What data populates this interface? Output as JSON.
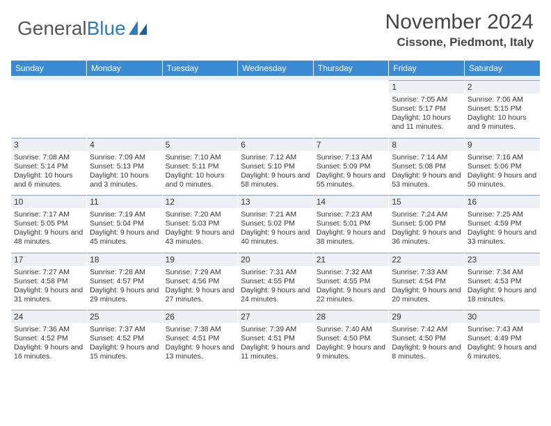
{
  "header": {
    "logo_text_1": "General",
    "logo_text_2": "Blue",
    "month_title": "November 2024",
    "location": "Cissone, Piedmont, Italy"
  },
  "colors": {
    "header_bar": "#3b8bd4",
    "daynum_bg": "#eceff4",
    "daynum_border": "#8aa0b8",
    "logo_blue": "#2b7cc5"
  },
  "day_names": [
    "Sunday",
    "Monday",
    "Tuesday",
    "Wednesday",
    "Thursday",
    "Friday",
    "Saturday"
  ],
  "weeks": [
    [
      null,
      null,
      null,
      null,
      null,
      {
        "num": "1",
        "sunrise": "Sunrise: 7:05 AM",
        "sunset": "Sunset: 5:17 PM",
        "daylight": "Daylight: 10 hours and 11 minutes."
      },
      {
        "num": "2",
        "sunrise": "Sunrise: 7:06 AM",
        "sunset": "Sunset: 5:15 PM",
        "daylight": "Daylight: 10 hours and 9 minutes."
      }
    ],
    [
      {
        "num": "3",
        "sunrise": "Sunrise: 7:08 AM",
        "sunset": "Sunset: 5:14 PM",
        "daylight": "Daylight: 10 hours and 6 minutes."
      },
      {
        "num": "4",
        "sunrise": "Sunrise: 7:09 AM",
        "sunset": "Sunset: 5:13 PM",
        "daylight": "Daylight: 10 hours and 3 minutes."
      },
      {
        "num": "5",
        "sunrise": "Sunrise: 7:10 AM",
        "sunset": "Sunset: 5:11 PM",
        "daylight": "Daylight: 10 hours and 0 minutes."
      },
      {
        "num": "6",
        "sunrise": "Sunrise: 7:12 AM",
        "sunset": "Sunset: 5:10 PM",
        "daylight": "Daylight: 9 hours and 58 minutes."
      },
      {
        "num": "7",
        "sunrise": "Sunrise: 7:13 AM",
        "sunset": "Sunset: 5:09 PM",
        "daylight": "Daylight: 9 hours and 55 minutes."
      },
      {
        "num": "8",
        "sunrise": "Sunrise: 7:14 AM",
        "sunset": "Sunset: 5:08 PM",
        "daylight": "Daylight: 9 hours and 53 minutes."
      },
      {
        "num": "9",
        "sunrise": "Sunrise: 7:16 AM",
        "sunset": "Sunset: 5:06 PM",
        "daylight": "Daylight: 9 hours and 50 minutes."
      }
    ],
    [
      {
        "num": "10",
        "sunrise": "Sunrise: 7:17 AM",
        "sunset": "Sunset: 5:05 PM",
        "daylight": "Daylight: 9 hours and 48 minutes."
      },
      {
        "num": "11",
        "sunrise": "Sunrise: 7:19 AM",
        "sunset": "Sunset: 5:04 PM",
        "daylight": "Daylight: 9 hours and 45 minutes."
      },
      {
        "num": "12",
        "sunrise": "Sunrise: 7:20 AM",
        "sunset": "Sunset: 5:03 PM",
        "daylight": "Daylight: 9 hours and 43 minutes."
      },
      {
        "num": "13",
        "sunrise": "Sunrise: 7:21 AM",
        "sunset": "Sunset: 5:02 PM",
        "daylight": "Daylight: 9 hours and 40 minutes."
      },
      {
        "num": "14",
        "sunrise": "Sunrise: 7:23 AM",
        "sunset": "Sunset: 5:01 PM",
        "daylight": "Daylight: 9 hours and 38 minutes."
      },
      {
        "num": "15",
        "sunrise": "Sunrise: 7:24 AM",
        "sunset": "Sunset: 5:00 PM",
        "daylight": "Daylight: 9 hours and 36 minutes."
      },
      {
        "num": "16",
        "sunrise": "Sunrise: 7:25 AM",
        "sunset": "Sunset: 4:59 PM",
        "daylight": "Daylight: 9 hours and 33 minutes."
      }
    ],
    [
      {
        "num": "17",
        "sunrise": "Sunrise: 7:27 AM",
        "sunset": "Sunset: 4:58 PM",
        "daylight": "Daylight: 9 hours and 31 minutes."
      },
      {
        "num": "18",
        "sunrise": "Sunrise: 7:28 AM",
        "sunset": "Sunset: 4:57 PM",
        "daylight": "Daylight: 9 hours and 29 minutes."
      },
      {
        "num": "19",
        "sunrise": "Sunrise: 7:29 AM",
        "sunset": "Sunset: 4:56 PM",
        "daylight": "Daylight: 9 hours and 27 minutes."
      },
      {
        "num": "20",
        "sunrise": "Sunrise: 7:31 AM",
        "sunset": "Sunset: 4:55 PM",
        "daylight": "Daylight: 9 hours and 24 minutes."
      },
      {
        "num": "21",
        "sunrise": "Sunrise: 7:32 AM",
        "sunset": "Sunset: 4:55 PM",
        "daylight": "Daylight: 9 hours and 22 minutes."
      },
      {
        "num": "22",
        "sunrise": "Sunrise: 7:33 AM",
        "sunset": "Sunset: 4:54 PM",
        "daylight": "Daylight: 9 hours and 20 minutes."
      },
      {
        "num": "23",
        "sunrise": "Sunrise: 7:34 AM",
        "sunset": "Sunset: 4:53 PM",
        "daylight": "Daylight: 9 hours and 18 minutes."
      }
    ],
    [
      {
        "num": "24",
        "sunrise": "Sunrise: 7:36 AM",
        "sunset": "Sunset: 4:52 PM",
        "daylight": "Daylight: 9 hours and 16 minutes."
      },
      {
        "num": "25",
        "sunrise": "Sunrise: 7:37 AM",
        "sunset": "Sunset: 4:52 PM",
        "daylight": "Daylight: 9 hours and 15 minutes."
      },
      {
        "num": "26",
        "sunrise": "Sunrise: 7:38 AM",
        "sunset": "Sunset: 4:51 PM",
        "daylight": "Daylight: 9 hours and 13 minutes."
      },
      {
        "num": "27",
        "sunrise": "Sunrise: 7:39 AM",
        "sunset": "Sunset: 4:51 PM",
        "daylight": "Daylight: 9 hours and 11 minutes."
      },
      {
        "num": "28",
        "sunrise": "Sunrise: 7:40 AM",
        "sunset": "Sunset: 4:50 PM",
        "daylight": "Daylight: 9 hours and 9 minutes."
      },
      {
        "num": "29",
        "sunrise": "Sunrise: 7:42 AM",
        "sunset": "Sunset: 4:50 PM",
        "daylight": "Daylight: 9 hours and 8 minutes."
      },
      {
        "num": "30",
        "sunrise": "Sunrise: 7:43 AM",
        "sunset": "Sunset: 4:49 PM",
        "daylight": "Daylight: 9 hours and 6 minutes."
      }
    ]
  ]
}
